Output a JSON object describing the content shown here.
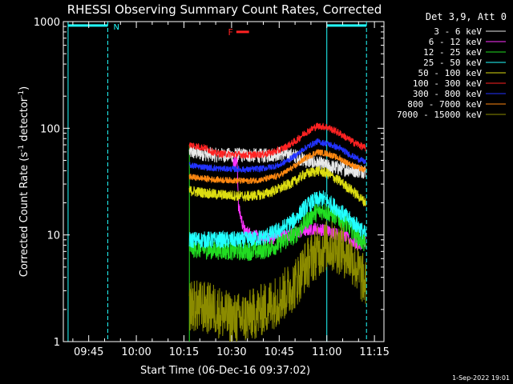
{
  "chart_data": {
    "type": "line",
    "title": "RHESSI Observing Summary Count Rates, Corrected",
    "xlabel": "Start Time (06-Dec-16 09:37:02)",
    "ylabel_main": "Corrected Count Rate (s",
    "ylabel_sup1": "-1",
    "ylabel_mid": " detector",
    "ylabel_sup2": "-1",
    "ylabel_end": ")",
    "yscale": "log",
    "ylim": [
      1,
      1000
    ],
    "xlim_min": [
      37,
      138
    ],
    "x_ticks": [
      {
        "min": 45,
        "label": "09:45"
      },
      {
        "min": 60,
        "label": "10:00"
      },
      {
        "min": 75,
        "label": "10:15"
      },
      {
        "min": 90,
        "label": "10:30"
      },
      {
        "min": 105,
        "label": "10:45"
      },
      {
        "min": 120,
        "label": "11:00"
      },
      {
        "min": 135,
        "label": "11:15"
      }
    ],
    "y_ticks": [
      {
        "value": 1,
        "label": "1"
      },
      {
        "value": 10,
        "label": "10"
      },
      {
        "value": 100,
        "label": "100"
      },
      {
        "value": 1000,
        "label": "1000"
      }
    ],
    "legend_title": "Det 3,9, Att 0",
    "legend_placement": "right",
    "footer_date": "1-Sep-2022 19:01",
    "data_start_min": 76.7,
    "data_end_min": 132.3,
    "flare_label": "F",
    "flare_interval_min": [
      91.5,
      95.5
    ],
    "flare_level": 800,
    "night_label": "N",
    "night_intervals_min": [
      [
        38.5,
        51.0
      ],
      [
        120.0,
        132.5
      ]
    ],
    "night_lines_min": [
      38.5,
      51.0,
      120.0,
      132.5
    ],
    "series": [
      {
        "name": "3 - 6 keV",
        "color": "#e8e8e8",
        "points": [
          [
            76.7,
            60
          ],
          [
            85,
            56
          ],
          [
            95,
            56
          ],
          [
            100,
            55
          ],
          [
            105,
            58
          ],
          [
            110,
            55
          ],
          [
            113,
            50
          ],
          [
            116,
            48
          ],
          [
            120,
            44
          ],
          [
            125,
            42
          ],
          [
            130,
            40
          ],
          [
            132.3,
            40
          ]
        ]
      },
      {
        "name": "6 - 12 keV",
        "color": "#ff33ff",
        "points": [
          [
            90.5,
            48
          ],
          [
            91.8,
            48
          ],
          [
            92.2,
            18
          ],
          [
            94,
            11
          ],
          [
            100,
            9
          ],
          [
            108,
            10
          ],
          [
            116,
            11.5
          ],
          [
            120,
            11
          ],
          [
            126,
            9.5
          ],
          [
            130,
            8
          ],
          [
            132.3,
            9
          ]
        ]
      },
      {
        "name": "12 - 25 keV",
        "color": "#22dd22",
        "points": [
          [
            76.7,
            7.5
          ],
          [
            85,
            7.2
          ],
          [
            95,
            7
          ],
          [
            100,
            7.2
          ],
          [
            105,
            8.2
          ],
          [
            110,
            10
          ],
          [
            113,
            13
          ],
          [
            116,
            16
          ],
          [
            119,
            17
          ],
          [
            123,
            15
          ],
          [
            127,
            12
          ],
          [
            130,
            9.5
          ],
          [
            132.3,
            8
          ]
        ]
      },
      {
        "name": "25 - 50 keV",
        "color": "#22ffff",
        "points": [
          [
            76.7,
            9
          ],
          [
            85,
            9
          ],
          [
            95,
            9
          ],
          [
            100,
            9.5
          ],
          [
            105,
            11
          ],
          [
            110,
            14
          ],
          [
            113,
            18
          ],
          [
            116,
            21
          ],
          [
            119,
            22
          ],
          [
            123,
            18
          ],
          [
            127,
            14
          ],
          [
            130,
            12
          ],
          [
            132.3,
            10
          ]
        ]
      },
      {
        "name": "50 - 100 keV",
        "color": "#dddd11",
        "points": [
          [
            76.7,
            26
          ],
          [
            85,
            24
          ],
          [
            95,
            23
          ],
          [
            100,
            24
          ],
          [
            105,
            27
          ],
          [
            110,
            32
          ],
          [
            113,
            37
          ],
          [
            117,
            40
          ],
          [
            120,
            38
          ],
          [
            124,
            32
          ],
          [
            128,
            26
          ],
          [
            132.3,
            20
          ]
        ]
      },
      {
        "name": "100 - 300 keV",
        "color": "#ff2222",
        "points": [
          [
            76.7,
            70
          ],
          [
            82,
            65
          ],
          [
            85,
            58
          ],
          [
            95,
            56
          ],
          [
            100,
            57
          ],
          [
            105,
            62
          ],
          [
            110,
            75
          ],
          [
            113,
            90
          ],
          [
            117,
            105
          ],
          [
            120,
            103
          ],
          [
            124,
            90
          ],
          [
            128,
            75
          ],
          [
            132.3,
            65
          ]
        ]
      },
      {
        "name": "300 - 800 keV",
        "color": "#2233ff",
        "points": [
          [
            76.7,
            45
          ],
          [
            85,
            42
          ],
          [
            95,
            41
          ],
          [
            100,
            42
          ],
          [
            105,
            45
          ],
          [
            110,
            55
          ],
          [
            113,
            65
          ],
          [
            117,
            75
          ],
          [
            120,
            72
          ],
          [
            124,
            65
          ],
          [
            128,
            55
          ],
          [
            132.3,
            48
          ]
        ]
      },
      {
        "name": "800 - 7000 keV",
        "color": "#ff8811",
        "points": [
          [
            76.7,
            35
          ],
          [
            85,
            33
          ],
          [
            95,
            32
          ],
          [
            100,
            33
          ],
          [
            105,
            36
          ],
          [
            110,
            44
          ],
          [
            113,
            52
          ],
          [
            117,
            60
          ],
          [
            120,
            58
          ],
          [
            124,
            52
          ],
          [
            128,
            45
          ],
          [
            132.3,
            40
          ]
        ]
      },
      {
        "name": "7000 - 15000 keV",
        "color": "#8b8b00",
        "points": [
          [
            76.7,
            2.2
          ],
          [
            85,
            2.0
          ],
          [
            90,
            1.6
          ],
          [
            95,
            1.7
          ],
          [
            100,
            2.0
          ],
          [
            105,
            2.5
          ],
          [
            110,
            3.5
          ],
          [
            113,
            5
          ],
          [
            116,
            6.5
          ],
          [
            120,
            8
          ],
          [
            124,
            7.5
          ],
          [
            128,
            6
          ],
          [
            130,
            4.5
          ],
          [
            132.3,
            3.5
          ]
        ]
      }
    ]
  }
}
